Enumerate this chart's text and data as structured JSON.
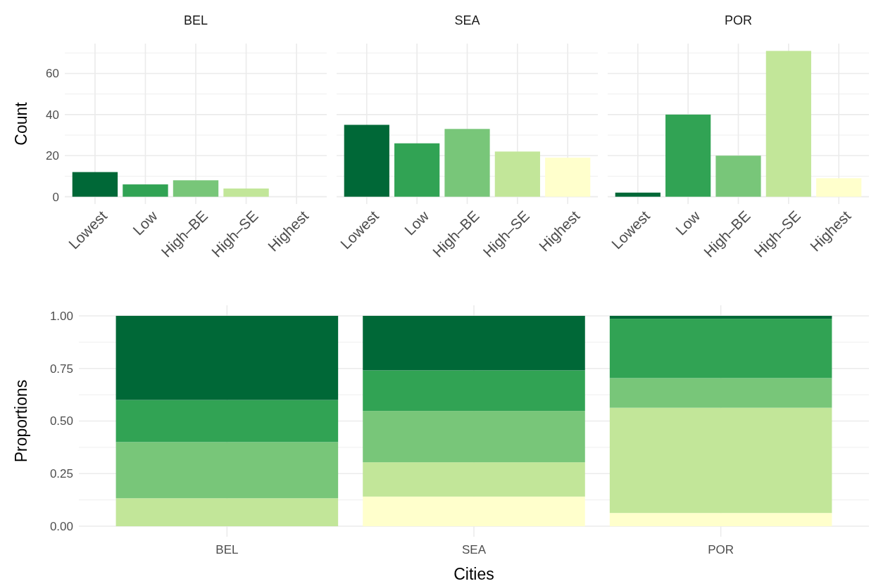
{
  "chart_data": [
    {
      "type": "bar",
      "title": "BEL",
      "ylabel": "Count",
      "categories": [
        "Lowest",
        "Low",
        "High–BE",
        "High–SE",
        "Highest"
      ],
      "values": [
        12,
        6,
        8,
        4,
        0
      ],
      "colors": [
        "#006837",
        "#31a354",
        "#78c679",
        "#c2e699",
        "#ffffcc"
      ],
      "ylim": [
        -3.55,
        74.55
      ],
      "yticks": [
        0,
        {
          "value": 10,
          "label": null
        },
        20,
        {
          "value": 30,
          "label": null
        },
        40,
        {
          "value": 50,
          "label": null
        },
        60,
        {
          "value": 70,
          "label": null
        }
      ],
      "grid": true
    },
    {
      "type": "bar",
      "title": "SEA",
      "categories": [
        "Lowest",
        "Low",
        "High–BE",
        "High–SE",
        "Highest"
      ],
      "values": [
        35,
        26,
        33,
        22,
        19
      ],
      "colors": [
        "#006837",
        "#31a354",
        "#78c679",
        "#c2e699",
        "#ffffcc"
      ],
      "ylim": [
        -3.55,
        74.55
      ],
      "yticks": [
        0,
        {
          "value": 10,
          "label": null
        },
        20,
        {
          "value": 30,
          "label": null
        },
        40,
        {
          "value": 50,
          "label": null
        },
        60,
        {
          "value": 70,
          "label": null
        }
      ],
      "grid": true,
      "tick_labels": "x"
    },
    {
      "type": "bar",
      "title": "POR",
      "categories": [
        "Lowest",
        "Low",
        "High–BE",
        "High–SE",
        "Highest"
      ],
      "values": [
        2,
        40,
        20,
        71,
        9
      ],
      "colors": [
        "#006837",
        "#31a354",
        "#78c679",
        "#c2e699",
        "#ffffcc"
      ],
      "ylim": [
        -3.55,
        74.55
      ],
      "yticks": [
        0,
        {
          "value": 10,
          "label": null
        },
        20,
        {
          "value": 30,
          "label": null
        },
        40,
        {
          "value": 50,
          "label": null
        },
        60,
        {
          "value": 70,
          "label": null
        }
      ],
      "grid": true,
      "tick_labels": "x"
    },
    {
      "type": "bar",
      "stacked": true,
      "xlabel": "Cities",
      "ylabel": "Proportions",
      "categories": [
        "BEL",
        "SEA",
        "POR"
      ],
      "series": [
        {
          "color": "#ffffcc",
          "values": [
            null,
            0.141,
            0.063
          ]
        },
        {
          "color": "#c2e699",
          "values": [
            0.133,
            0.163,
            0.5
          ]
        },
        {
          "color": "#78c679",
          "values": [
            0.267,
            0.244,
            0.141
          ]
        },
        {
          "color": "#31a354",
          "values": [
            0.2,
            0.193,
            0.282
          ]
        },
        {
          "color": "#006837",
          "values": [
            0.4,
            0.259,
            0.014
          ]
        }
      ],
      "ylim": [
        -0.05,
        1.05
      ],
      "yticks": [
        {
          "value": 0,
          "label": "0.00"
        },
        {
          "value": 0.125,
          "label": null
        },
        {
          "value": 0.25,
          "label": "0.25"
        },
        {
          "value": 0.375,
          "label": null
        },
        {
          "value": 0.5,
          "label": "0.50"
        },
        {
          "value": 0.625,
          "label": null
        },
        {
          "value": 0.75,
          "label": "0.75"
        },
        {
          "value": 0.875,
          "label": null
        },
        {
          "value": 1,
          "label": "1.00"
        }
      ],
      "grid": true
    }
  ]
}
